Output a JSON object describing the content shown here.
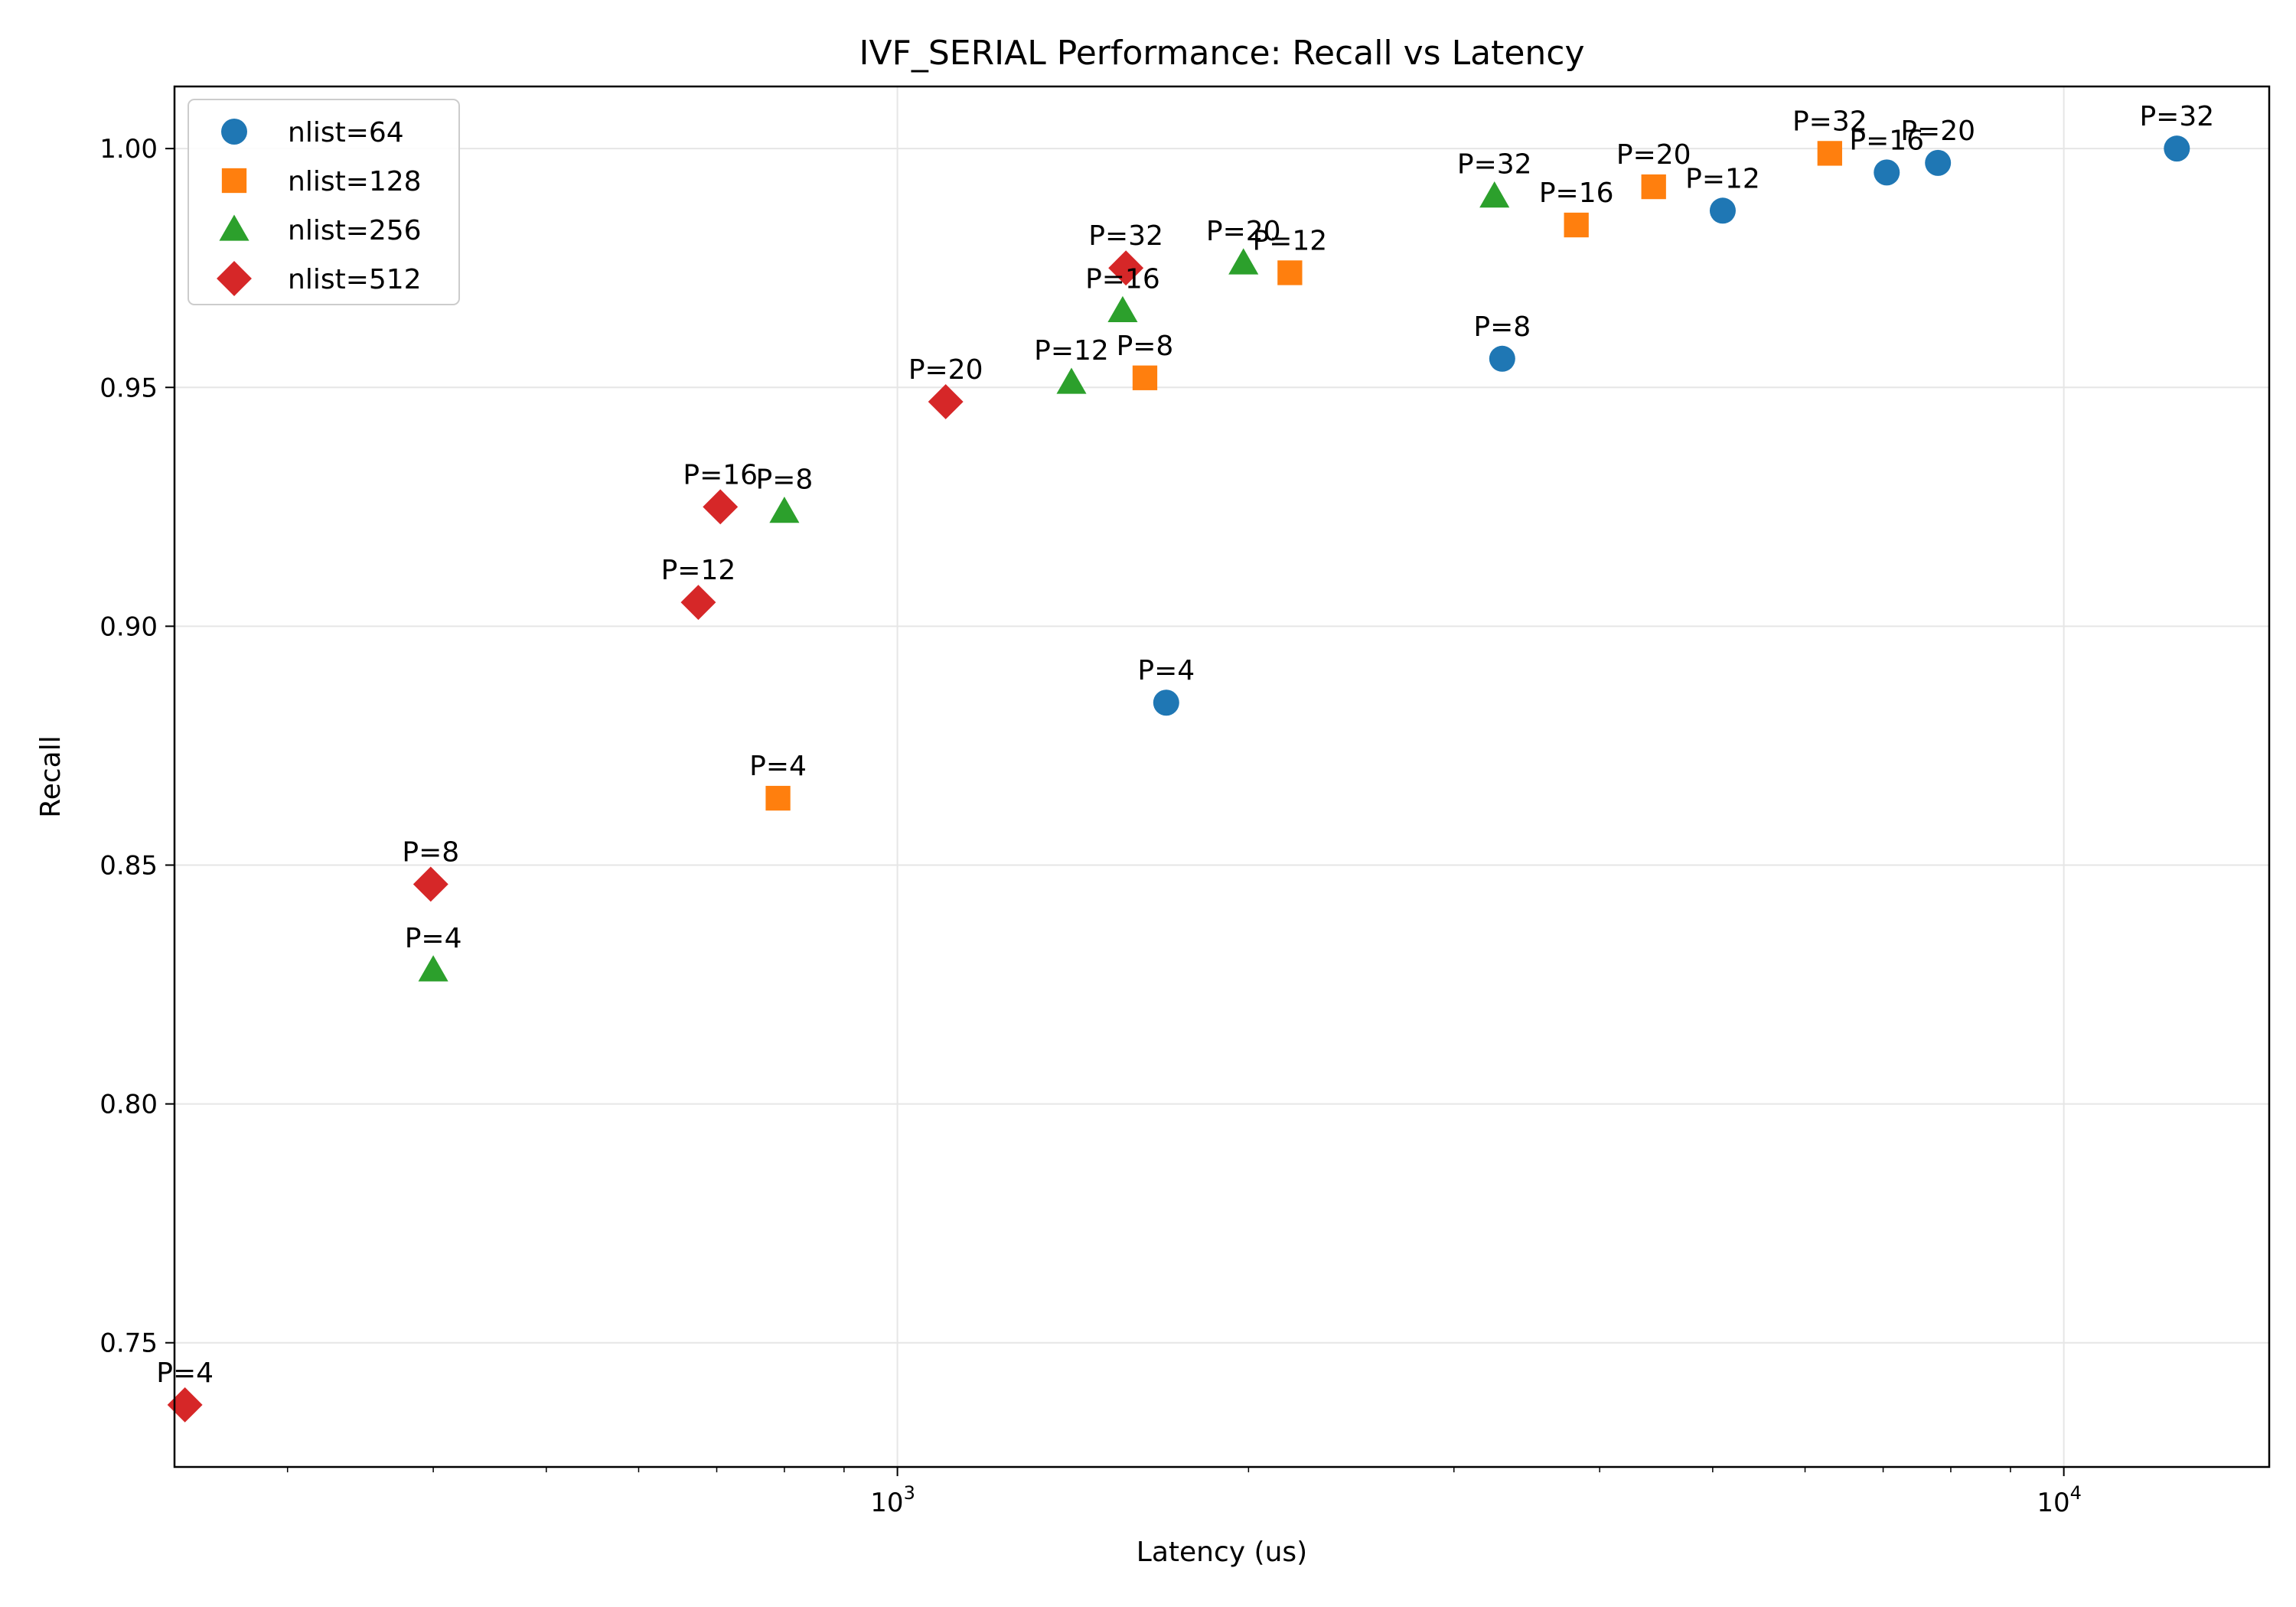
{
  "chart_data": {
    "type": "scatter",
    "title": "IVF_SERIAL Performance: Recall vs Latency",
    "xlabel": "Latency (us)",
    "ylabel": "Recall",
    "xscale": "log",
    "xlim": [
      240,
      15000
    ],
    "ylim": [
      0.724,
      1.013
    ],
    "x_ticks": [
      {
        "value": 1000,
        "base": "10",
        "exp": "3"
      },
      {
        "value": 10000,
        "base": "10",
        "exp": "4"
      }
    ],
    "y_ticks": [
      {
        "value": 0.75,
        "label": "0.75"
      },
      {
        "value": 0.8,
        "label": "0.80"
      },
      {
        "value": 0.85,
        "label": "0.85"
      },
      {
        "value": 0.9,
        "label": "0.90"
      },
      {
        "value": 0.95,
        "label": "0.95"
      },
      {
        "value": 1.0,
        "label": "1.00"
      }
    ],
    "grid": true,
    "legend_position": "top-left",
    "series": [
      {
        "name": "nlist=64",
        "color": "#1f77b4",
        "marker": "circle",
        "points": [
          {
            "x": 1700,
            "y": 0.884,
            "label": "P=4"
          },
          {
            "x": 3300,
            "y": 0.956,
            "label": "P=8"
          },
          {
            "x": 5100,
            "y": 0.987,
            "label": "P=12"
          },
          {
            "x": 7050,
            "y": 0.995,
            "label": "P=16"
          },
          {
            "x": 7800,
            "y": 0.997,
            "label": "P=20"
          },
          {
            "x": 12500,
            "y": 1.0,
            "label": "P=32"
          }
        ]
      },
      {
        "name": "nlist=128",
        "color": "#ff7f0e",
        "marker": "square",
        "points": [
          {
            "x": 790,
            "y": 0.864,
            "label": "P=4"
          },
          {
            "x": 1630,
            "y": 0.952,
            "label": "P=8"
          },
          {
            "x": 2170,
            "y": 0.974,
            "label": "P=12"
          },
          {
            "x": 3820,
            "y": 0.984,
            "label": "P=16"
          },
          {
            "x": 4450,
            "y": 0.992,
            "label": "P=20"
          },
          {
            "x": 6300,
            "y": 0.999,
            "label": "P=32"
          }
        ]
      },
      {
        "name": "nlist=256",
        "color": "#2ca02c",
        "marker": "triangle",
        "points": [
          {
            "x": 400,
            "y": 0.828,
            "label": "P=4"
          },
          {
            "x": 800,
            "y": 0.924,
            "label": "P=8"
          },
          {
            "x": 1410,
            "y": 0.951,
            "label": "P=12"
          },
          {
            "x": 1560,
            "y": 0.966,
            "label": "P=16"
          },
          {
            "x": 1980,
            "y": 0.976,
            "label": "P=20"
          },
          {
            "x": 3250,
            "y": 0.99,
            "label": "P=32"
          }
        ]
      },
      {
        "name": "nlist=512",
        "color": "#d62728",
        "marker": "diamond",
        "points": [
          {
            "x": 245,
            "y": 0.737,
            "label": "P=4"
          },
          {
            "x": 398,
            "y": 0.846,
            "label": "P=8"
          },
          {
            "x": 675,
            "y": 0.905,
            "label": "P=12"
          },
          {
            "x": 705,
            "y": 0.925,
            "label": "P=16"
          },
          {
            "x": 1100,
            "y": 0.947,
            "label": "P=20"
          },
          {
            "x": 1570,
            "y": 0.975,
            "label": "P=32"
          }
        ]
      }
    ]
  }
}
